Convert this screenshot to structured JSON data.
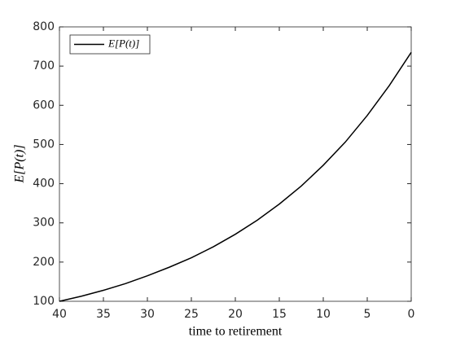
{
  "chart_data": {
    "type": "line",
    "xlabel": "time to retirement",
    "ylabel": "E[P(t)]",
    "x": [
      40,
      37.5,
      35,
      32.5,
      30,
      27.5,
      25,
      22.5,
      20,
      17.5,
      15,
      12.5,
      10,
      7.5,
      5,
      2.5,
      0
    ],
    "series": [
      {
        "name": "E[P(t)]",
        "color": "#000000",
        "values": [
          100,
          113,
          128,
          145,
          165,
          187,
          211,
          239,
          271,
          307,
          348,
          394,
          447,
          506,
          574,
          650,
          735
        ]
      }
    ],
    "xlim": [
      40,
      0
    ],
    "xticks": [
      40,
      35,
      30,
      25,
      20,
      15,
      10,
      5,
      0
    ],
    "ylim": [
      100,
      800
    ],
    "yticks": [
      100,
      200,
      300,
      400,
      500,
      600,
      700,
      800
    ],
    "legend": "upper-left",
    "box": true
  }
}
